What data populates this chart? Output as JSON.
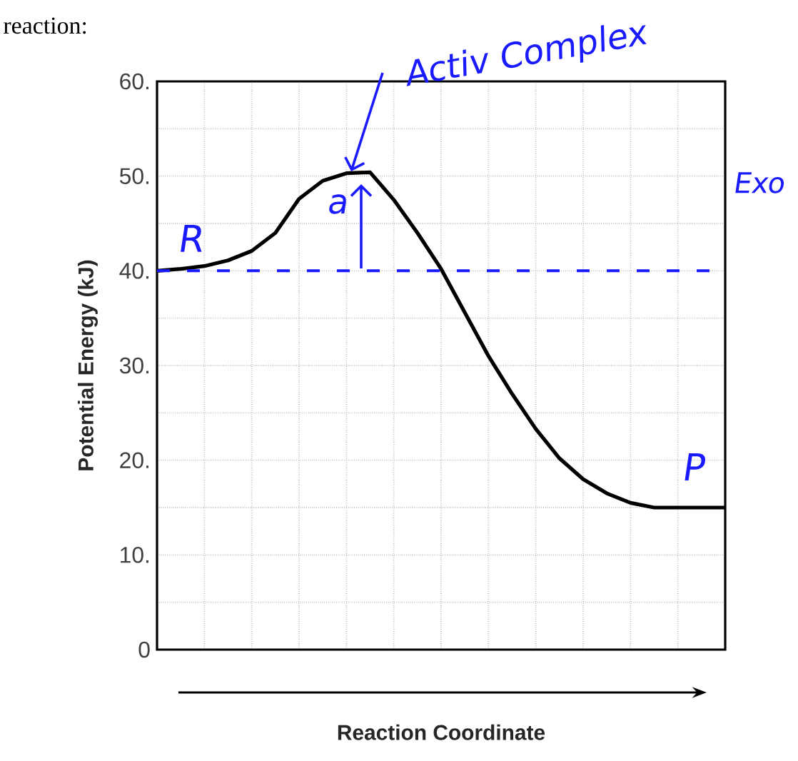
{
  "chart_data": {
    "type": "line",
    "xlabel": "Reaction Coordinate",
    "ylabel": "Potential Energy (kJ)",
    "categories": [
      null,
      null,
      null,
      null,
      null,
      null,
      null,
      null,
      null,
      null,
      null,
      null,
      null,
      null,
      null,
      null,
      null,
      null,
      null,
      null,
      null,
      null,
      null,
      null,
      null
    ],
    "series": [
      {
        "color": "#000000",
        "values": [
          40,
          40.2,
          40.5,
          41.1,
          42.1,
          44,
          47.6,
          49.5,
          50.3,
          50.4,
          47.5,
          44,
          40.2,
          35.6,
          31,
          27,
          23.3,
          20.2,
          18,
          16.5,
          15.5,
          15,
          15,
          15,
          15
        ]
      }
    ],
    "ylim": [
      0,
      60
    ],
    "yticks": [
      {
        "value": 0,
        "label": "0"
      },
      {
        "value": 5,
        "label": null
      },
      {
        "value": 10,
        "label": "10."
      },
      {
        "value": 15,
        "label": null
      },
      {
        "value": 20,
        "label": "20."
      },
      {
        "value": 25,
        "label": null
      },
      {
        "value": 30,
        "label": "30."
      },
      {
        "value": 35,
        "label": null
      },
      {
        "value": 40,
        "label": "40."
      },
      {
        "value": 45,
        "label": null
      },
      {
        "value": 50,
        "label": "50."
      },
      {
        "value": 55,
        "label": null
      },
      {
        "value": 60,
        "label": "60."
      }
    ],
    "tick_labels": "y",
    "grid": true,
    "line_style": "solid",
    "marker": "none",
    "ref_lines": [
      {
        "axis": "y",
        "value": 40,
        "color": "#1a1aff",
        "line_style": "dashed"
      }
    ],
    "annotations": [
      "reaction:",
      "Activ Complex",
      "Exo",
      "R",
      "a",
      "P"
    ]
  }
}
